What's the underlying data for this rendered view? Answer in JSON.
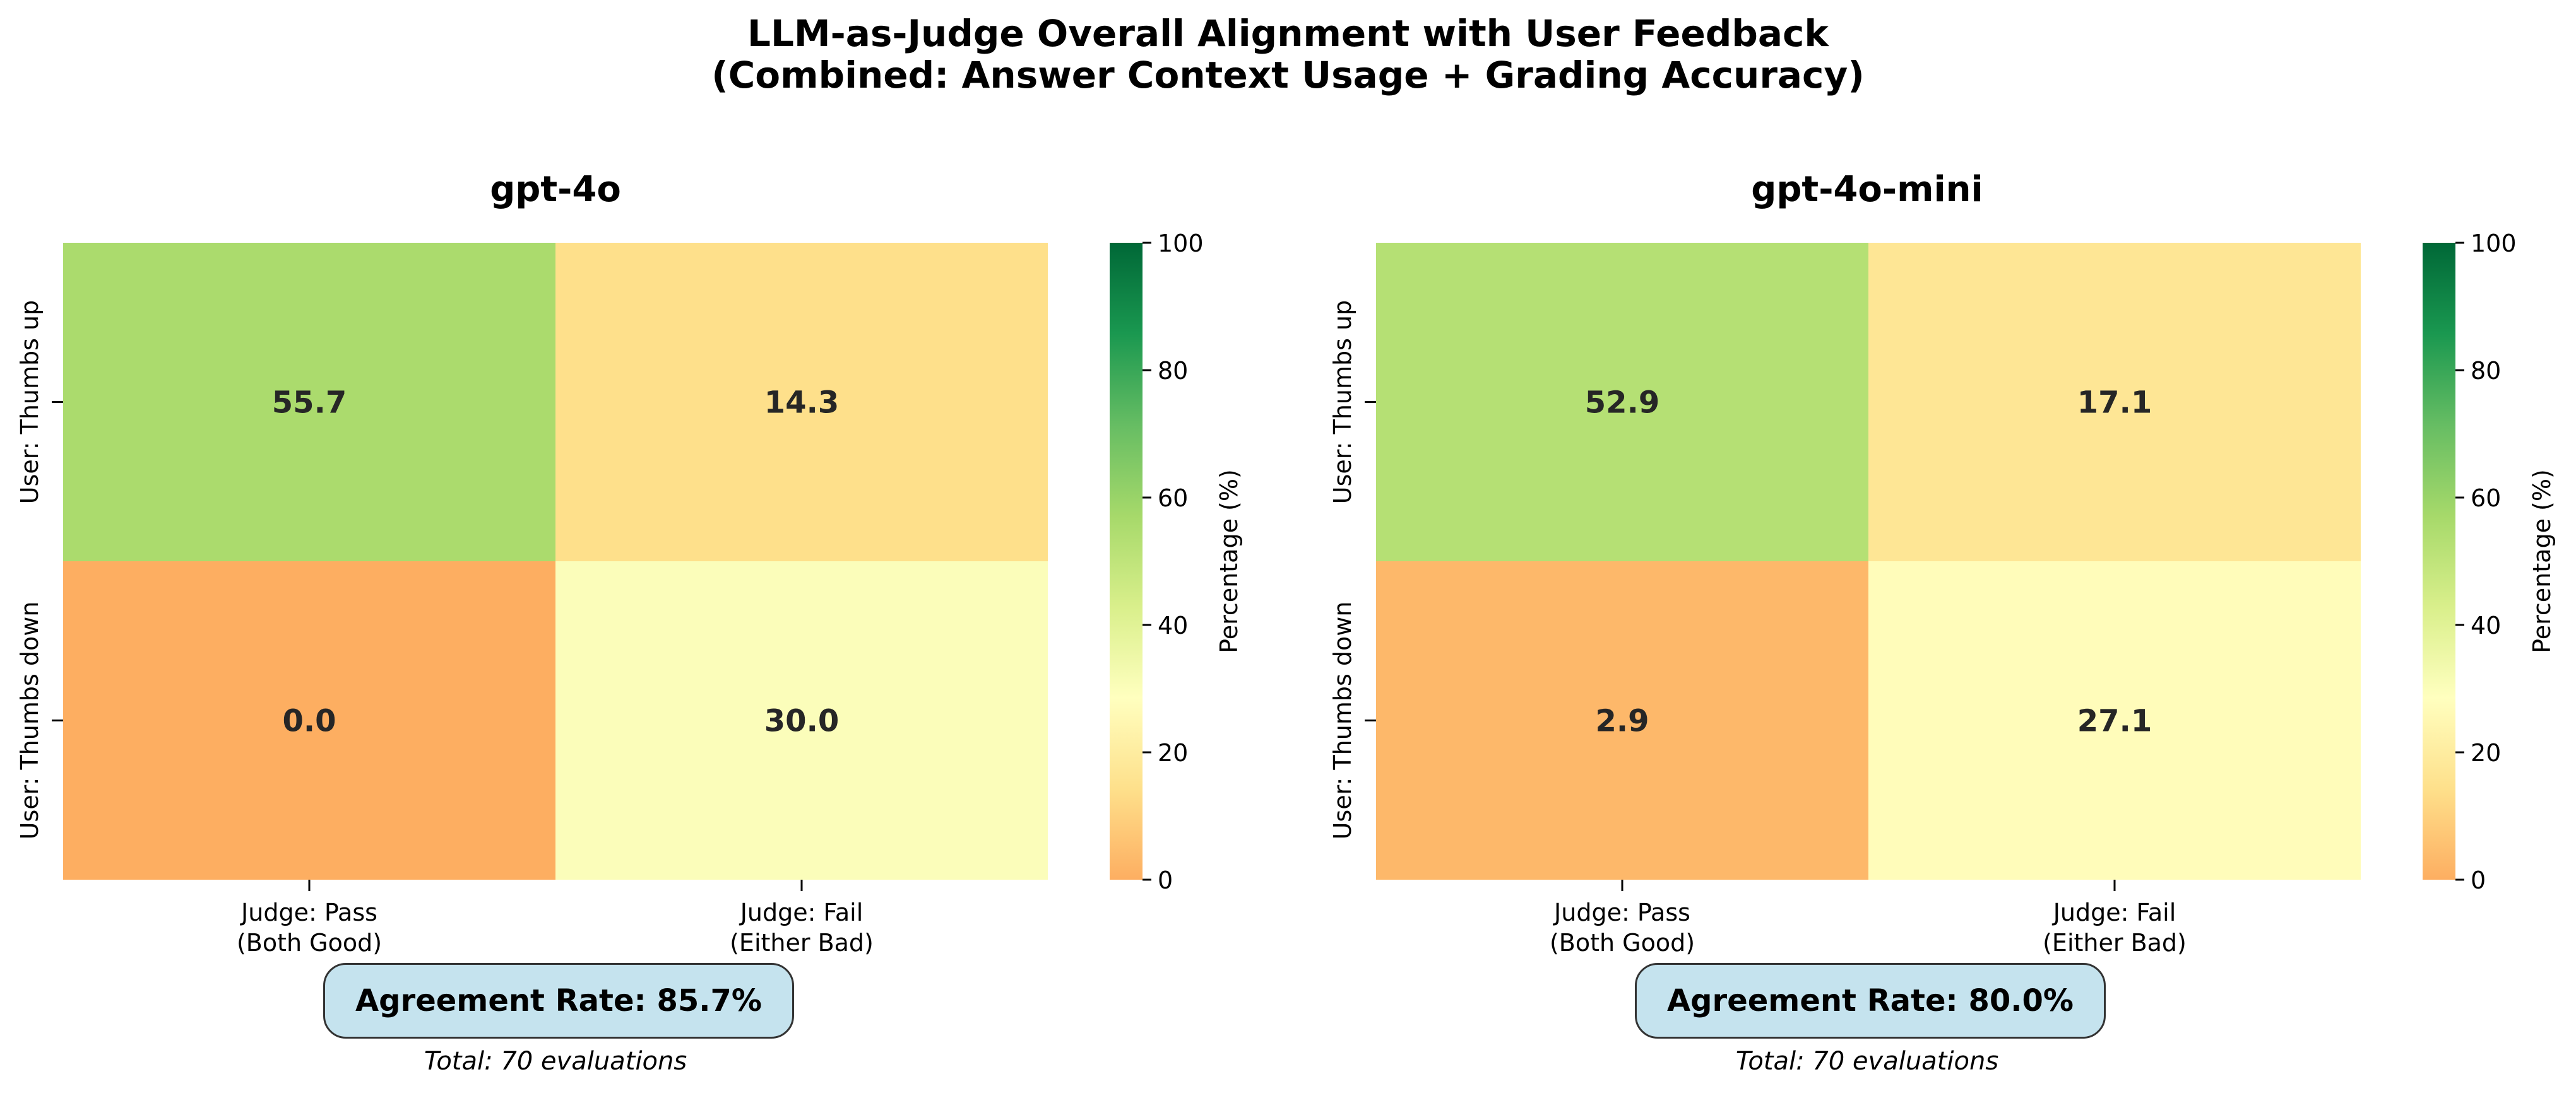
{
  "figure": {
    "title_line1": "LLM-as-Judge Overall Alignment with User Feedback",
    "title_line2": "(Combined: Answer Context Usage + Grading Accuracy)"
  },
  "chart_data": [
    {
      "type": "heatmap",
      "title": "gpt-4o",
      "x_categories": [
        "Judge: Pass\n(Both Good)",
        "Judge: Fail\n(Either Bad)"
      ],
      "y_categories": [
        "User: Thumbs up",
        "User: Thumbs down"
      ],
      "values": [
        [
          55.7,
          14.3
        ],
        [
          0.0,
          30.0
        ]
      ],
      "colorbar": {
        "label": "Percentage (%)",
        "range": [
          0,
          100
        ],
        "ticks": [
          0,
          20,
          40,
          60,
          80,
          100
        ]
      },
      "agreement_rate": "Agreement Rate: 85.7%",
      "total": "Total: 70 evaluations"
    },
    {
      "type": "heatmap",
      "title": "gpt-4o-mini",
      "x_categories": [
        "Judge: Pass\n(Both Good)",
        "Judge: Fail\n(Either Bad)"
      ],
      "y_categories": [
        "User: Thumbs up",
        "User: Thumbs down"
      ],
      "values": [
        [
          52.9,
          17.1
        ],
        [
          2.9,
          27.1
        ]
      ],
      "colorbar": {
        "label": "Percentage (%)",
        "range": [
          0,
          100
        ],
        "ticks": [
          0,
          20,
          40,
          60,
          80,
          100
        ]
      },
      "agreement_rate": "Agreement Rate: 80.0%",
      "total": "Total: 70 evaluations"
    }
  ],
  "colors": {
    "colormap": [
      "#fdae61",
      "#fee08b",
      "#ffffbf",
      "#d9ef8b",
      "#a6d96a",
      "#66bd63",
      "#1a9850",
      "#006837"
    ],
    "cell_text": "#262626",
    "badge_bg": "#c5e3ee"
  }
}
